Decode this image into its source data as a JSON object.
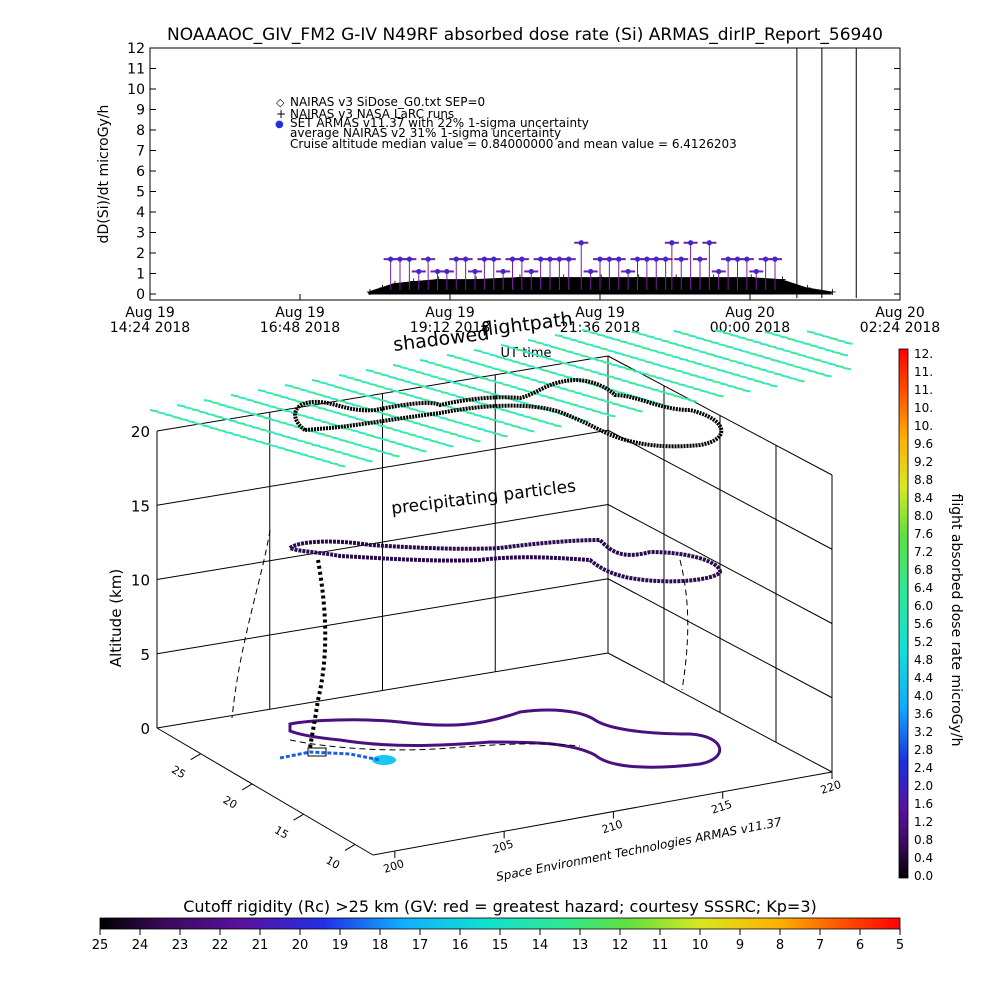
{
  "title": "NOAAAOC_GIV_FM2 G-IV   N49RF  absorbed dose rate (Si) ARMAS_dirIP_Report_56940",
  "colors": {
    "nairas_marker": "#000000",
    "armas_marker": "#3a2bd0",
    "armas_bar": "#7a1aa0",
    "footprint": "#000000",
    "flight_path": "#4a1080",
    "precip_cyan": "#32e8c0",
    "precip_green": "#40e890"
  },
  "chart_data": [
    {
      "type": "scatter",
      "ylabel": "dD(Si)/dt microGy/h",
      "xlabel": "UT time",
      "ylim": [
        0,
        12
      ],
      "yticks": [
        "0",
        "1",
        "2",
        "3",
        "4",
        "5",
        "6",
        "7",
        "8",
        "9",
        "10",
        "11",
        "12"
      ],
      "xticks": [
        {
          "line1": "Aug 19",
          "line2": "14:24 2018"
        },
        {
          "line1": "Aug 19",
          "line2": "16:48 2018"
        },
        {
          "line1": "Aug 19",
          "line2": "19:12 2018"
        },
        {
          "line1": "Aug 19",
          "line2": "21:36 2018"
        },
        {
          "line1": "Aug 20",
          "line2": "00:00 2018"
        },
        {
          "line1": "Aug 20",
          "line2": "02:24 2018"
        }
      ],
      "xlim_hours": [
        14.4,
        26.4
      ],
      "legend": [
        {
          "symbol": "◇",
          "label": "NAIRAS v3 SiDose_G0.txt SEP=0"
        },
        {
          "symbol": "+",
          "label": "NAIRAS v3 NASA LaRC runs"
        },
        {
          "symbol": "●",
          "label": "SET ARMAS v11.37 with 22% 1-sigma uncertainty"
        },
        {
          "symbol": "",
          "label": "average NAIRAS v2 31% 1-sigma uncertainty"
        },
        {
          "symbol": "",
          "label": "Cruise altitude median value = 0.84000000 and mean value = 6.4126203"
        }
      ],
      "legend_position": "top-left",
      "series": [
        {
          "name": "SET ARMAS v11.37 with 22% 1-sigma uncertainty",
          "points": [
            [
              18.25,
              1.7
            ],
            [
              18.4,
              1.7
            ],
            [
              18.55,
              1.7
            ],
            [
              18.7,
              1.1
            ],
            [
              18.85,
              1.7
            ],
            [
              19.0,
              1.1
            ],
            [
              19.15,
              1.1
            ],
            [
              19.3,
              1.7
            ],
            [
              19.45,
              1.7
            ],
            [
              19.6,
              1.1
            ],
            [
              19.75,
              1.7
            ],
            [
              19.9,
              1.7
            ],
            [
              20.05,
              1.1
            ],
            [
              20.2,
              1.7
            ],
            [
              20.35,
              1.7
            ],
            [
              20.5,
              1.1
            ],
            [
              20.65,
              1.7
            ],
            [
              20.8,
              1.7
            ],
            [
              20.95,
              1.7
            ],
            [
              21.1,
              1.7
            ],
            [
              21.3,
              2.5
            ],
            [
              21.45,
              1.1
            ],
            [
              21.6,
              1.7
            ],
            [
              21.75,
              1.7
            ],
            [
              21.9,
              1.7
            ],
            [
              22.05,
              1.1
            ],
            [
              22.2,
              1.7
            ],
            [
              22.35,
              1.7
            ],
            [
              22.5,
              1.7
            ],
            [
              22.65,
              1.7
            ],
            [
              22.75,
              2.5
            ],
            [
              22.9,
              1.7
            ],
            [
              23.05,
              2.5
            ],
            [
              23.2,
              1.7
            ],
            [
              23.35,
              2.5
            ],
            [
              23.5,
              1.1
            ],
            [
              23.65,
              1.7
            ],
            [
              23.8,
              1.7
            ],
            [
              23.95,
              1.7
            ],
            [
              24.1,
              1.1
            ],
            [
              24.25,
              1.7
            ],
            [
              24.4,
              1.7
            ]
          ]
        },
        {
          "name": "NAIRAS v3 NASA LaRC runs",
          "points": [
            [
              17.9,
              0.1
            ],
            [
              18.1,
              0.3
            ],
            [
              18.3,
              0.5
            ],
            [
              18.6,
              0.6
            ],
            [
              19.0,
              0.7
            ],
            [
              19.6,
              0.7
            ],
            [
              20.3,
              0.8
            ],
            [
              21.0,
              0.8
            ],
            [
              21.6,
              0.8
            ],
            [
              22.2,
              0.8
            ],
            [
              22.8,
              0.8
            ],
            [
              23.4,
              0.8
            ],
            [
              24.0,
              0.8
            ],
            [
              24.5,
              0.7
            ],
            [
              24.9,
              0.3
            ],
            [
              25.3,
              0.1
            ]
          ]
        }
      ]
    },
    {
      "type": "scatter",
      "annotations": [
        "flightpath",
        "shadowed",
        "precipitating particles"
      ],
      "zlabel": "Altitude (km)",
      "zticks": [
        "0",
        "5",
        "10",
        "15",
        "20"
      ],
      "lat_ticks": [
        "10",
        "15",
        "20",
        "25"
      ],
      "lon_ticks": [
        "200",
        "205",
        "210",
        "215",
        "220"
      ],
      "credit": "Space Environment Technologies ARMAS v11.37",
      "colorbar": {
        "label": "flight absorbed dose rate microGy/h",
        "ticks": [
          "0.0",
          "0.4",
          "0.8",
          "1.2",
          "1.6",
          "2.0",
          "2.4",
          "2.8",
          "3.2",
          "3.6",
          "4.0",
          "4.4",
          "4.8",
          "5.2",
          "5.6",
          "6.0",
          "6.4",
          "6.8",
          "7.2",
          "7.6",
          "8.0",
          "8.4",
          "8.8",
          "9.2",
          "9.6",
          "10.",
          "10.",
          "11.",
          "11.",
          "12."
        ]
      }
    },
    {
      "type": "heatmap",
      "title": "Cutoff rigidity (Rc) >25 km (GV: red = greatest hazard; courtesy SSSRC; Kp=3)",
      "ticks": [
        "25",
        "24",
        "23",
        "22",
        "21",
        "20",
        "19",
        "18",
        "17",
        "16",
        "15",
        "14",
        "13",
        "12",
        "11",
        "10",
        "9",
        "8",
        "7",
        "6",
        "5"
      ]
    }
  ]
}
